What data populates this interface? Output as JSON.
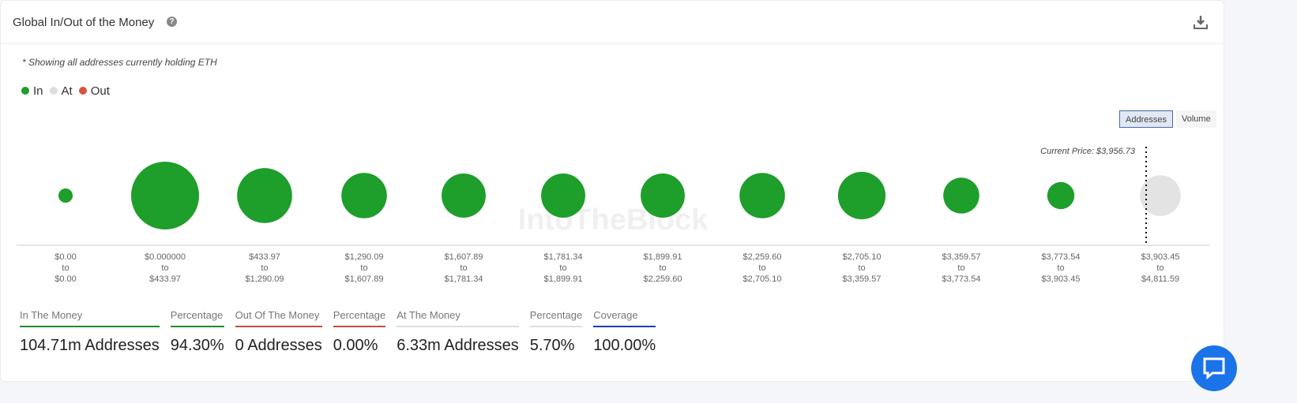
{
  "header": {
    "title": "Global In/Out of the Money",
    "help_icon": "question-circle-icon",
    "download_icon": "download-icon"
  },
  "note": "* Showing all addresses currently holding ETH",
  "legend": [
    {
      "label": "In",
      "color": "#1e9e2a"
    },
    {
      "label": "At",
      "color": "#dedede"
    },
    {
      "label": "Out",
      "color": "#d9533c"
    }
  ],
  "toggle": {
    "addresses": "Addresses",
    "volume": "Volume",
    "selected": "Addresses"
  },
  "watermark": "IntoTheBlock",
  "chart_data": {
    "type": "bubble",
    "current_price_label": "Current Price: $3,956.73",
    "current_price": 3956.73,
    "categories": [
      {
        "from": "$0.00",
        "to": "$0.00"
      },
      {
        "from": "$0.000000",
        "to": "$433.97"
      },
      {
        "from": "$433.97",
        "to": "$1,290.09"
      },
      {
        "from": "$1,290.09",
        "to": "$1,607.89"
      },
      {
        "from": "$1,607.89",
        "to": "$1,781.34"
      },
      {
        "from": "$1,781.34",
        "to": "$1,899.91"
      },
      {
        "from": "$1,899.91",
        "to": "$2,259.60"
      },
      {
        "from": "$2,259.60",
        "to": "$2,705.10"
      },
      {
        "from": "$2,705.10",
        "to": "$3,359.57"
      },
      {
        "from": "$3,359.57",
        "to": "$3,773.54"
      },
      {
        "from": "$3,773.54",
        "to": "$3,903.45"
      },
      {
        "from": "$3,903.45",
        "to": "$4,811.59"
      }
    ],
    "to_word": "to",
    "relative_size": [
      0.21,
      1.0,
      0.81,
      0.67,
      0.65,
      0.65,
      0.65,
      0.67,
      0.7,
      0.53,
      0.4,
      0.6
    ],
    "status": [
      "In",
      "In",
      "In",
      "In",
      "In",
      "In",
      "In",
      "In",
      "In",
      "In",
      "In",
      "At"
    ]
  },
  "stats": [
    {
      "label": "In The Money",
      "value": "104.71m Addresses",
      "color": "#1e8e2a"
    },
    {
      "label": "Percentage",
      "value": "94.30%",
      "color": "#1e8e2a"
    },
    {
      "label": "Out Of The Money",
      "value": "0 Addresses",
      "color": "#b5533f"
    },
    {
      "label": "Percentage",
      "value": "0.00%",
      "color": "#b5533f"
    },
    {
      "label": "At The Money",
      "value": "6.33m Addresses",
      "color": "#dddddd"
    },
    {
      "label": "Percentage",
      "value": "5.70%",
      "color": "#dddddd"
    },
    {
      "label": "Coverage",
      "value": "100.00%",
      "color": "#1a3fb0"
    }
  ]
}
